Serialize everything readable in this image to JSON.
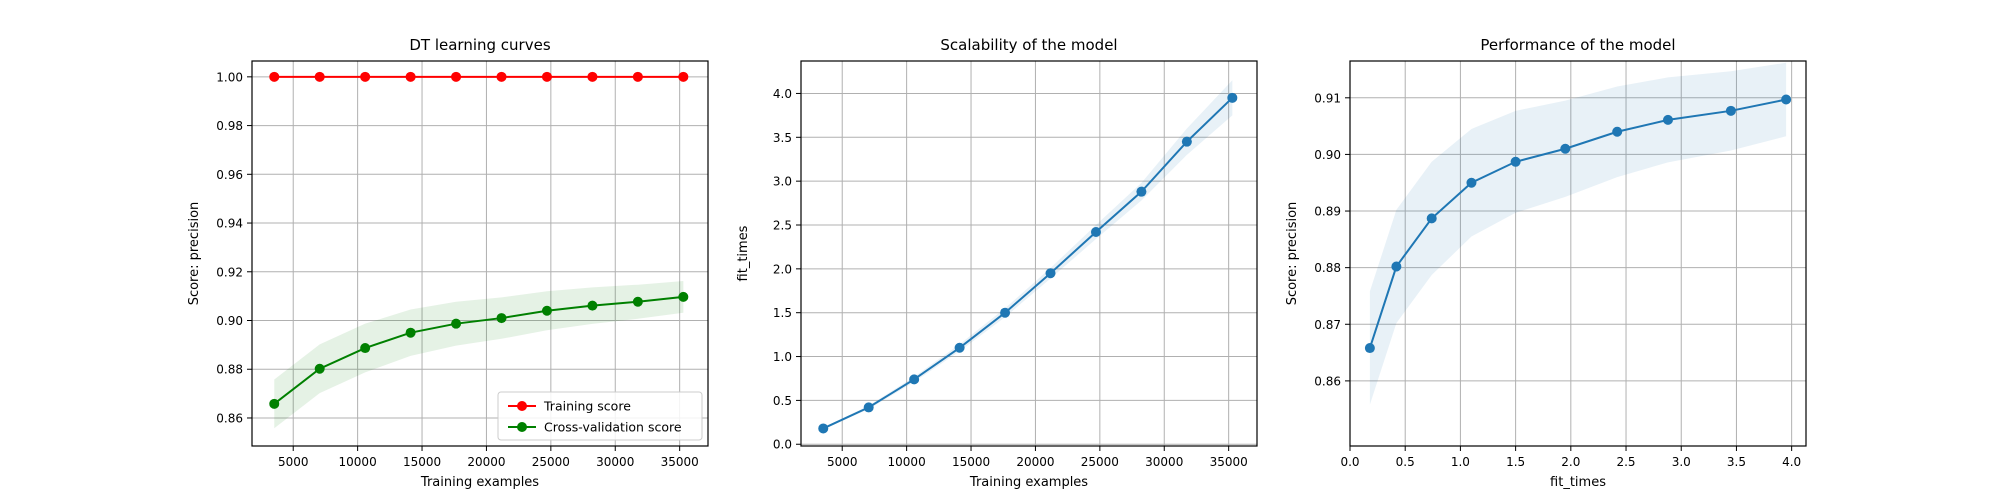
{
  "chart_data": [
    {
      "type": "line",
      "title": "DT learning curves",
      "xlabel": "Training examples",
      "ylabel": "Score: precision",
      "xlim": [
        1800,
        37200
      ],
      "ylim": [
        0.8485,
        1.0065
      ],
      "xticks": [
        5000,
        10000,
        15000,
        20000,
        25000,
        30000,
        35000
      ],
      "xtick_labels": [
        "5000",
        "10000",
        "15000",
        "20000",
        "25000",
        "30000",
        "35000"
      ],
      "yticks": [
        0.86,
        0.88,
        0.9,
        0.92,
        0.94,
        0.96,
        0.98,
        1.0
      ],
      "ytick_labels": [
        "0.86",
        "0.88",
        "0.90",
        "0.92",
        "0.94",
        "0.96",
        "0.98",
        "1.00"
      ],
      "grid": true,
      "legend": "lower-right",
      "x": [
        3528,
        7055,
        10584,
        14113,
        17642,
        21170,
        24699,
        28227,
        31756,
        35285
      ],
      "series": [
        {
          "name": "Training score",
          "color": "#ff0000",
          "values": [
            1.0,
            1.0,
            1.0,
            1.0,
            1.0,
            1.0,
            1.0,
            1.0,
            1.0,
            1.0
          ],
          "lower": [
            1.0,
            1.0,
            1.0,
            1.0,
            1.0,
            1.0,
            1.0,
            1.0,
            1.0,
            1.0
          ],
          "upper": [
            1.0,
            1.0,
            1.0,
            1.0,
            1.0,
            1.0,
            1.0,
            1.0,
            1.0,
            1.0
          ]
        },
        {
          "name": "Cross-validation score",
          "color": "#008000",
          "values": [
            0.8658,
            0.8802,
            0.8887,
            0.895,
            0.8987,
            0.901,
            0.904,
            0.9061,
            0.9077,
            0.9097
          ],
          "lower": [
            0.8558,
            0.8702,
            0.8787,
            0.8855,
            0.8897,
            0.8925,
            0.896,
            0.8986,
            0.9007,
            0.9032
          ],
          "upper": [
            0.8758,
            0.8902,
            0.8987,
            0.9045,
            0.9077,
            0.9095,
            0.912,
            0.9136,
            0.9147,
            0.9162
          ]
        }
      ]
    },
    {
      "type": "line",
      "title": "Scalability of the model",
      "xlabel": "Training examples",
      "ylabel": "fit_times",
      "xlim": [
        1800,
        37200
      ],
      "ylim": [
        -0.02,
        4.37
      ],
      "xticks": [
        5000,
        10000,
        15000,
        20000,
        25000,
        30000,
        35000
      ],
      "xtick_labels": [
        "5000",
        "10000",
        "15000",
        "20000",
        "25000",
        "30000",
        "35000"
      ],
      "yticks": [
        0.0,
        0.5,
        1.0,
        1.5,
        2.0,
        2.5,
        3.0,
        3.5,
        4.0
      ],
      "ytick_labels": [
        "0.0",
        "0.5",
        "1.0",
        "1.5",
        "2.0",
        "2.5",
        "3.0",
        "3.5",
        "4.0"
      ],
      "grid": true,
      "x": [
        3528,
        7055,
        10584,
        14113,
        17642,
        21170,
        24699,
        28227,
        31756,
        35285
      ],
      "series": [
        {
          "color": "#1f77b4",
          "values": [
            0.18,
            0.42,
            0.74,
            1.1,
            1.5,
            1.95,
            2.42,
            2.88,
            3.45,
            3.95
          ],
          "lower": [
            0.17,
            0.4,
            0.71,
            1.06,
            1.45,
            1.89,
            2.34,
            2.78,
            3.3,
            3.75
          ],
          "upper": [
            0.19,
            0.44,
            0.77,
            1.14,
            1.55,
            2.01,
            2.5,
            2.98,
            3.6,
            4.15
          ]
        }
      ]
    },
    {
      "type": "line",
      "title": "Performance of the model",
      "xlabel": "fit_times",
      "ylabel": "Score: precision",
      "xlim": [
        0.0,
        4.13
      ],
      "ylim": [
        0.8485,
        0.9165
      ],
      "xticks": [
        0.0,
        0.5,
        1.0,
        1.5,
        2.0,
        2.5,
        3.0,
        3.5,
        4.0
      ],
      "xtick_labels": [
        "0.0",
        "0.5",
        "1.0",
        "1.5",
        "2.0",
        "2.5",
        "3.0",
        "3.5",
        "4.0"
      ],
      "yticks": [
        0.86,
        0.87,
        0.88,
        0.89,
        0.9,
        0.91
      ],
      "ytick_labels": [
        "0.86",
        "0.87",
        "0.88",
        "0.89",
        "0.90",
        "0.91"
      ],
      "grid": true,
      "x": [
        0.18,
        0.42,
        0.74,
        1.1,
        1.5,
        1.95,
        2.42,
        2.88,
        3.45,
        3.95
      ],
      "series": [
        {
          "color": "#1f77b4",
          "values": [
            0.8658,
            0.8802,
            0.8887,
            0.895,
            0.8987,
            0.901,
            0.904,
            0.9061,
            0.9077,
            0.9097
          ],
          "lower": [
            0.8558,
            0.8702,
            0.8787,
            0.8855,
            0.8897,
            0.8925,
            0.896,
            0.8986,
            0.9007,
            0.9032
          ],
          "upper": [
            0.8758,
            0.8902,
            0.8987,
            0.9045,
            0.9077,
            0.9095,
            0.912,
            0.9136,
            0.9147,
            0.9162
          ]
        }
      ]
    }
  ]
}
